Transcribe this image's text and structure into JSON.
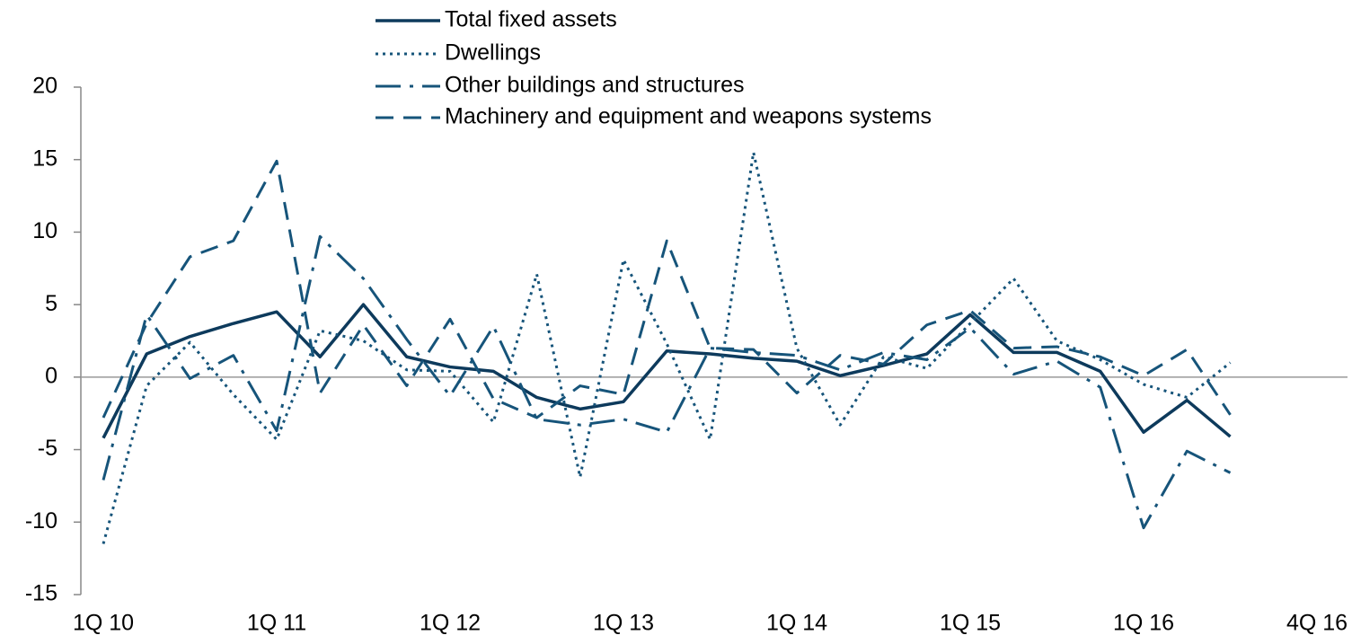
{
  "chart_data": {
    "type": "line",
    "categories": [
      "1Q 10",
      null,
      null,
      null,
      "1Q 11",
      null,
      null,
      null,
      "1Q 12",
      null,
      null,
      null,
      "1Q 13",
      null,
      null,
      null,
      "1Q 14",
      null,
      null,
      null,
      "1Q 15",
      null,
      null,
      null,
      "1Q 16",
      null,
      null,
      null,
      "4Q 16"
    ],
    "series": [
      {
        "name": "Total fixed assets",
        "color": "#0d3a5c",
        "dash": "solid",
        "values": [
          -4.2,
          1.6,
          2.8,
          3.7,
          4.5,
          1.4,
          5.0,
          1.4,
          0.7,
          0.4,
          -1.4,
          -2.2,
          -1.7,
          1.8,
          1.6,
          1.3,
          1.1,
          0.1,
          0.8,
          1.6,
          4.3,
          1.7,
          1.7,
          0.4,
          -3.8,
          -1.6,
          -4.1,
          null,
          null
        ]
      },
      {
        "name": "Dwellings",
        "color": "#16547a",
        "dash": "dotted",
        "values": [
          -11.5,
          -0.6,
          2.4,
          -1.2,
          -4.3,
          3.2,
          2.5,
          0.5,
          0.4,
          -3.1,
          7.1,
          -6.9,
          8.1,
          2.3,
          -4.3,
          15.5,
          2.0,
          -3.3,
          1.4,
          0.6,
          3.7,
          6.8,
          2.5,
          1.2,
          -0.5,
          -1.4,
          1.0,
          null,
          null
        ]
      },
      {
        "name": "Other buildings and structures",
        "color": "#16547a",
        "dash": "dash-dot",
        "values": [
          -7.1,
          4.3,
          -0.1,
          1.5,
          -3.7,
          9.7,
          6.8,
          2.6,
          -1.3,
          3.5,
          -2.9,
          -3.3,
          -2.9,
          -3.8,
          2.0,
          1.7,
          1.5,
          0.5,
          1.7,
          1.2,
          3.4,
          0.2,
          1.1,
          -0.7,
          -10.4,
          -5.1,
          -6.6,
          null,
          null
        ]
      },
      {
        "name": "Machinery and equipment and weapons systems",
        "color": "#16547a",
        "dash": "dashed",
        "values": [
          -2.8,
          3.7,
          8.3,
          9.4,
          14.9,
          -1.1,
          3.6,
          -0.6,
          4.0,
          -1.5,
          -2.8,
          -0.6,
          -1.2,
          9.4,
          2.0,
          1.9,
          -1.1,
          1.5,
          0.9,
          3.6,
          4.6,
          2.0,
          2.1,
          1.4,
          0.1,
          1.9,
          -2.6,
          null,
          null
        ]
      }
    ],
    "ylim": [
      -15,
      20
    ],
    "yticks": [
      -15,
      -10,
      -5,
      0,
      5,
      10,
      15,
      20
    ],
    "grid": false,
    "legend": "top"
  }
}
